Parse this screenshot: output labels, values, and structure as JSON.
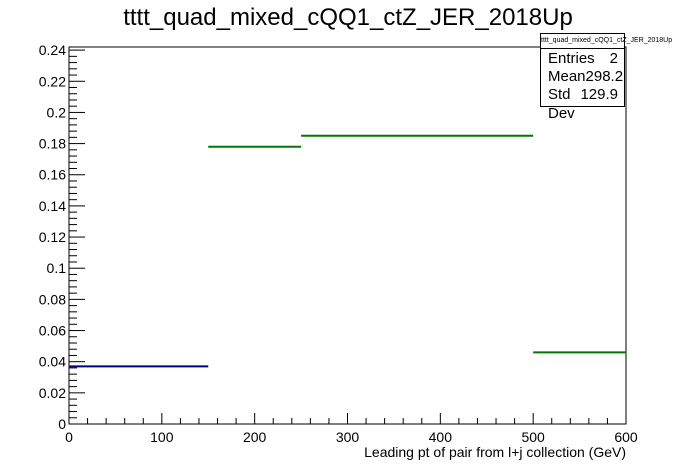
{
  "chart_data": {
    "type": "histogram",
    "title": "tttt_quad_mixed_cQQ1_ctZ_JER_2018Up",
    "xlabel": "Leading pt of pair from l+j collection (GeV)",
    "ylabel": "",
    "xlim": [
      0,
      600
    ],
    "ylim": [
      0,
      0.242
    ],
    "xticks": [
      0,
      100,
      200,
      300,
      400,
      500,
      600
    ],
    "xtick_labels": [
      "0",
      "100",
      "200",
      "300",
      "400",
      "500",
      "600"
    ],
    "yticks": [
      0,
      0.02,
      0.04,
      0.06,
      0.08,
      0.1,
      0.12,
      0.14,
      0.16,
      0.18,
      0.2,
      0.22,
      0.24
    ],
    "ytick_labels": [
      "0",
      "0.02",
      "0.04",
      "0.06",
      "0.08",
      "0.1",
      "0.12",
      "0.14",
      "0.16",
      "0.18",
      "0.2",
      "0.22",
      "0.24"
    ],
    "bins": [
      {
        "x0": 0,
        "x1": 150,
        "value": 0.037,
        "color": "#000080"
      },
      {
        "x0": 150,
        "x1": 250,
        "value": 0.178,
        "color": "#007700"
      },
      {
        "x0": 250,
        "x1": 500,
        "value": 0.185,
        "color": "#007700"
      },
      {
        "x0": 500,
        "x1": 600,
        "value": 0.046,
        "color": "#007700"
      }
    ],
    "grid": false,
    "stats_box": {
      "name": "tttt_quad_mixed_cQQ1_ctZ_JER_2018Up",
      "entries_label": "Entries",
      "entries": "2",
      "mean_label": "Mean",
      "mean": "298.2",
      "stddev_label": "Std Dev",
      "stddev": "129.9"
    }
  }
}
